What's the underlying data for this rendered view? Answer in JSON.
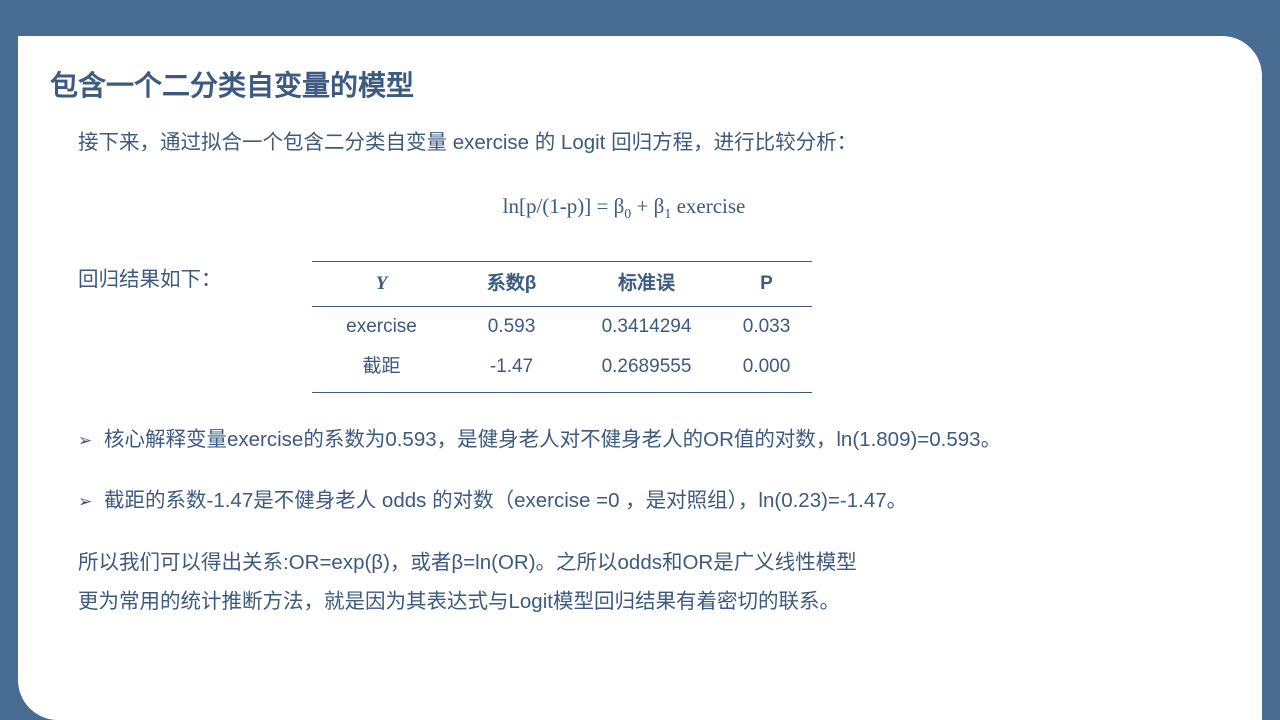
{
  "colors": {
    "page_bg": "#496C92",
    "slide_bg": "#ffffff",
    "text": "#3D5A80",
    "border": "#3D5A80"
  },
  "title": "包含一个二分类自变量的模型",
  "intro": "接下来，通过拟合一个包含二分类自变量 exercise 的 Logit 回归方程，进行比较分析：",
  "equation": {
    "lhs": "ln[p/(1-p)] = β",
    "sub0": "0",
    "mid": " + β",
    "sub1": "1",
    "rhs": " exercise"
  },
  "result_label": "回归结果如下：",
  "table": {
    "headers": {
      "y": "Y",
      "beta": "系数β",
      "se": "标准误",
      "p": "P"
    },
    "rows": [
      {
        "y": "exercise",
        "beta": "0.593",
        "se": "0.3414294",
        "p": "0.033"
      },
      {
        "y": "截距",
        "beta": "-1.47",
        "se": "0.2689555",
        "p": "0.000"
      }
    ]
  },
  "bullets": [
    "核心解释变量exercise的系数为0.593，是健身老人对不健身老人的OR值的对数，ln(1.809)=0.593。",
    "截距的系数-1.47是不健身老人 odds 的对数（exercise =0 ，是对照组），ln(0.23)=-1.47。"
  ],
  "arrow": "➢",
  "conclusion": {
    "line1": "所以我们可以得出关系:OR=exp(β)，或者β=ln(OR)。之所以odds和OR是广义线性模型",
    "line2": "更为常用的统计推断方法，就是因为其表达式与Logit模型回归结果有着密切的联系。"
  }
}
